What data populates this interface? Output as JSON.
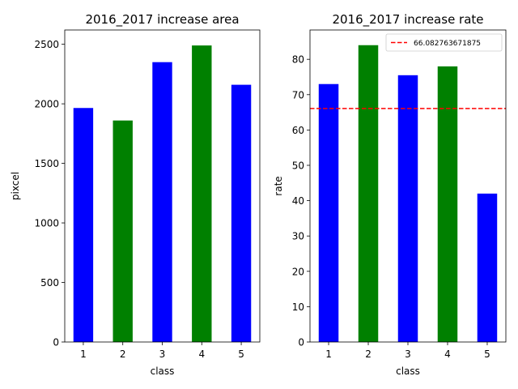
{
  "chart_data": [
    {
      "type": "bar",
      "title": "2016_2017 increase area",
      "xlabel": "class",
      "ylabel": "pixcel",
      "categories": [
        "1",
        "2",
        "3",
        "4",
        "5"
      ],
      "values": [
        1965,
        1860,
        2350,
        2490,
        2160
      ],
      "bar_colors": [
        "#0000ff",
        "#008000",
        "#0000ff",
        "#008000",
        "#0000ff"
      ],
      "ylim": [
        0,
        2620
      ],
      "yticks": [
        0,
        500,
        1000,
        1500,
        2000,
        2500
      ],
      "grid": false
    },
    {
      "type": "bar",
      "title": "2016_2017 increase rate",
      "xlabel": "class",
      "ylabel": "rate",
      "categories": [
        "1",
        "2",
        "3",
        "4",
        "5"
      ],
      "values": [
        73,
        84,
        75.5,
        78,
        42
      ],
      "bar_colors": [
        "#0000ff",
        "#008000",
        "#0000ff",
        "#008000",
        "#0000ff"
      ],
      "ylim": [
        0,
        88.3
      ],
      "yticks": [
        0,
        10,
        20,
        30,
        40,
        50,
        60,
        70,
        80
      ],
      "grid": false,
      "hline": {
        "value": 66.082763671875,
        "color": "#ff0000",
        "style": "dashed"
      },
      "legend": {
        "entries": [
          "66.082763671875"
        ],
        "position": "top-right"
      }
    }
  ]
}
